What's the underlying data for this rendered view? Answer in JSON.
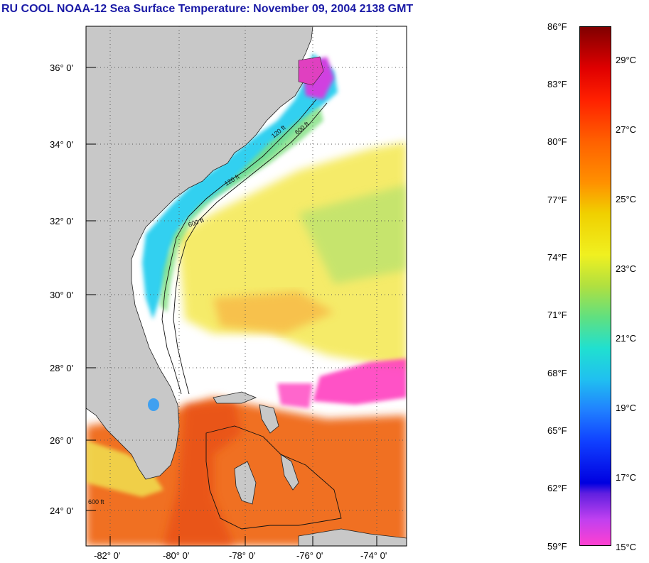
{
  "title": "RU COOL  NOAA-12  Sea Surface Temperature:  November 09, 2004 2138 GMT",
  "map": {
    "latitude_labels": [
      "36° 0'",
      "34° 0'",
      "32° 0'",
      "30° 0'",
      "28° 0'",
      "26° 0'",
      "24° 0'"
    ],
    "longitude_labels": [
      "-82° 0'",
      "-80° 0'",
      "-78° 0'",
      "-76° 0'",
      "-74° 0'"
    ],
    "isobath_labels": [
      "120 ft",
      "600 ft",
      "120 ft",
      "600 ft",
      "600 ft"
    ],
    "colors": {
      "land": "#c8c8c8",
      "cloud": "#ffffff",
      "cold": "#ff40c0",
      "coastal": "#20d8f0",
      "shelf": "#f0f040",
      "gulf_stream": "#f07020"
    }
  },
  "colorbar": {
    "fahrenheit_labels": [
      "86°F",
      "83°F",
      "80°F",
      "77°F",
      "74°F",
      "71°F",
      "68°F",
      "65°F",
      "62°F",
      "59°F"
    ],
    "celsius_labels": [
      "29°C",
      "27°C",
      "25°C",
      "23°C",
      "21°C",
      "19°C",
      "17°C",
      "15°C"
    ],
    "range_f": [
      59,
      86
    ],
    "range_c": [
      15,
      30
    ]
  }
}
